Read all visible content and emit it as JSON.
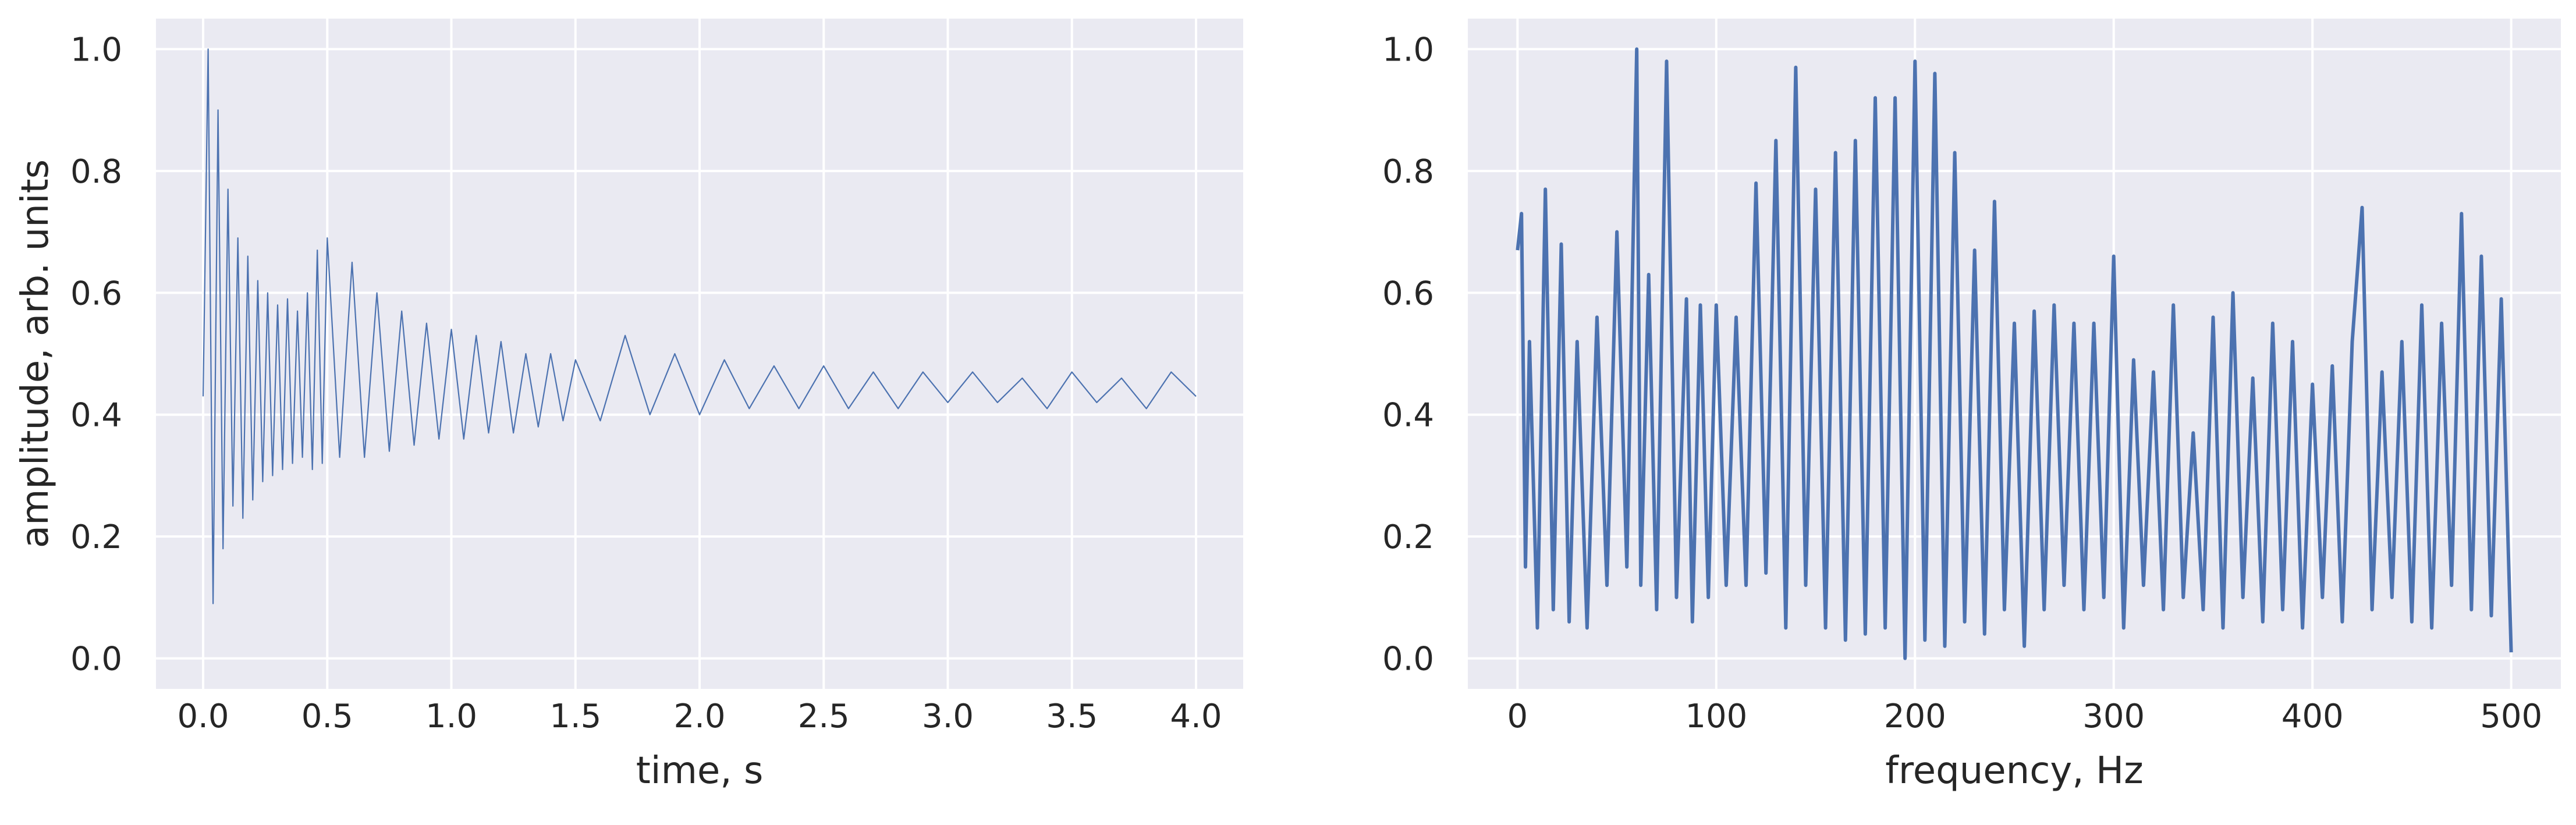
{
  "colors": {
    "plot_background": "#EAEAF2",
    "grid": "#FFFFFF",
    "series": "#4C72B0",
    "text": "#262626"
  },
  "chart_data": [
    {
      "type": "line",
      "xlabel": "time, s",
      "ylabel": "amplitude, arb. units",
      "xlim": [
        -0.19,
        4.19
      ],
      "ylim": [
        -0.05,
        1.05
      ],
      "x_ticks": [
        "0.0",
        "0.5",
        "1.0",
        "1.5",
        "2.0",
        "2.5",
        "3.0",
        "3.5",
        "4.0"
      ],
      "y_ticks": [
        "0.0",
        "0.2",
        "0.4",
        "0.6",
        "0.8",
        "1.0"
      ],
      "grid": true,
      "legend": "none",
      "series": [
        {
          "description": "decaying oscillation, sampled approx. every 0.02 s",
          "x": [
            0.0,
            0.02,
            0.04,
            0.06,
            0.08,
            0.1,
            0.12,
            0.14,
            0.16,
            0.18,
            0.2,
            0.22,
            0.24,
            0.26,
            0.28,
            0.3,
            0.32,
            0.34,
            0.36,
            0.38,
            0.4,
            0.42,
            0.44,
            0.46,
            0.48,
            0.5,
            0.55,
            0.6,
            0.65,
            0.7,
            0.75,
            0.8,
            0.85,
            0.9,
            0.95,
            1.0,
            1.05,
            1.1,
            1.15,
            1.2,
            1.25,
            1.3,
            1.35,
            1.4,
            1.45,
            1.5,
            1.6,
            1.7,
            1.8,
            1.9,
            2.0,
            2.1,
            2.2,
            2.3,
            2.4,
            2.5,
            2.6,
            2.7,
            2.8,
            2.9,
            3.0,
            3.1,
            3.2,
            3.3,
            3.4,
            3.5,
            3.6,
            3.7,
            3.8,
            3.9,
            4.0
          ],
          "y": [
            0.43,
            1.0,
            0.09,
            0.9,
            0.18,
            0.77,
            0.25,
            0.69,
            0.23,
            0.66,
            0.26,
            0.62,
            0.29,
            0.6,
            0.3,
            0.58,
            0.31,
            0.59,
            0.32,
            0.57,
            0.33,
            0.6,
            0.31,
            0.67,
            0.32,
            0.69,
            0.33,
            0.65,
            0.33,
            0.6,
            0.34,
            0.57,
            0.35,
            0.55,
            0.36,
            0.54,
            0.36,
            0.53,
            0.37,
            0.52,
            0.37,
            0.5,
            0.38,
            0.5,
            0.39,
            0.49,
            0.39,
            0.53,
            0.4,
            0.5,
            0.4,
            0.49,
            0.41,
            0.48,
            0.41,
            0.48,
            0.41,
            0.47,
            0.41,
            0.47,
            0.42,
            0.47,
            0.42,
            0.46,
            0.41,
            0.47,
            0.42,
            0.46,
            0.41,
            0.47,
            0.43
          ]
        }
      ]
    },
    {
      "type": "line",
      "xlabel": "frequency, Hz",
      "ylabel": "",
      "xlim": [
        -25,
        525
      ],
      "ylim": [
        -0.05,
        1.05
      ],
      "x_ticks": [
        "0",
        "100",
        "200",
        "300",
        "400",
        "500"
      ],
      "y_ticks": [
        "0.0",
        "0.2",
        "0.4",
        "0.6",
        "0.8",
        "1.0"
      ],
      "grid": true,
      "legend": "none",
      "series": [
        {
          "description": "normalized magnitude spectrum, sampled approx. every 5 Hz",
          "x": [
            0,
            2,
            4,
            6,
            10,
            14,
            18,
            22,
            26,
            30,
            35,
            40,
            45,
            50,
            55,
            60,
            62,
            66,
            70,
            75,
            80,
            85,
            88,
            92,
            96,
            100,
            105,
            110,
            115,
            120,
            125,
            130,
            135,
            140,
            145,
            150,
            155,
            160,
            165,
            170,
            175,
            180,
            185,
            190,
            195,
            200,
            205,
            210,
            215,
            220,
            225,
            230,
            235,
            240,
            245,
            250,
            255,
            260,
            265,
            270,
            275,
            280,
            285,
            290,
            295,
            300,
            305,
            310,
            315,
            320,
            325,
            330,
            335,
            340,
            345,
            350,
            355,
            360,
            365,
            370,
            375,
            380,
            385,
            390,
            395,
            400,
            405,
            410,
            415,
            420,
            425,
            430,
            435,
            440,
            445,
            450,
            455,
            460,
            465,
            470,
            475,
            480,
            485,
            490,
            495,
            500
          ],
          "y": [
            0.67,
            0.73,
            0.15,
            0.52,
            0.05,
            0.77,
            0.08,
            0.68,
            0.06,
            0.52,
            0.05,
            0.56,
            0.12,
            0.7,
            0.15,
            1.0,
            0.12,
            0.63,
            0.08,
            0.98,
            0.1,
            0.59,
            0.06,
            0.58,
            0.1,
            0.58,
            0.12,
            0.56,
            0.12,
            0.78,
            0.14,
            0.85,
            0.05,
            0.97,
            0.12,
            0.77,
            0.05,
            0.83,
            0.03,
            0.85,
            0.04,
            0.92,
            0.05,
            0.92,
            0.0,
            0.98,
            0.03,
            0.96,
            0.02,
            0.83,
            0.06,
            0.67,
            0.04,
            0.75,
            0.08,
            0.55,
            0.02,
            0.57,
            0.08,
            0.58,
            0.12,
            0.55,
            0.08,
            0.55,
            0.1,
            0.66,
            0.05,
            0.49,
            0.12,
            0.47,
            0.08,
            0.58,
            0.1,
            0.37,
            0.08,
            0.56,
            0.05,
            0.6,
            0.1,
            0.46,
            0.06,
            0.55,
            0.08,
            0.52,
            0.05,
            0.45,
            0.1,
            0.48,
            0.06,
            0.52,
            0.74,
            0.08,
            0.47,
            0.1,
            0.52,
            0.06,
            0.58,
            0.05,
            0.55,
            0.12,
            0.73,
            0.08,
            0.66,
            0.07,
            0.59,
            0.01
          ]
        }
      ]
    }
  ]
}
